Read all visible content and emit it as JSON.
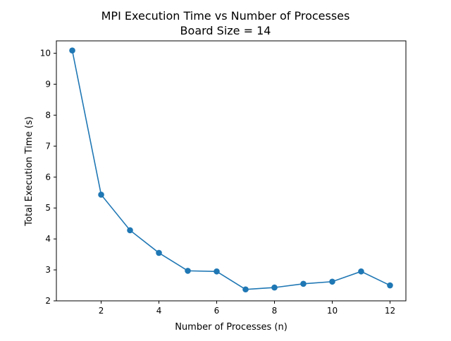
{
  "chart_data": {
    "type": "line",
    "title": "MPI Execution Time vs Number of Processes",
    "subtitle": "Board Size = 14",
    "xlabel": "Number of Processes (n)",
    "ylabel": "Total Execution Time (s)",
    "x": [
      1,
      2,
      3,
      4,
      5,
      6,
      7,
      8,
      9,
      10,
      11,
      12
    ],
    "series": [
      {
        "values": [
          10.09,
          5.43,
          4.28,
          3.55,
          2.97,
          2.95,
          2.37,
          2.43,
          2.55,
          2.62,
          2.95,
          2.5
        ],
        "color": "#1f77b4",
        "marker": "circle"
      }
    ],
    "xlim": [
      0.45,
      12.55
    ],
    "ylim": [
      2.0,
      10.4
    ],
    "xticks": [
      2,
      4,
      6,
      8,
      10,
      12
    ],
    "yticks": [
      2,
      3,
      4,
      5,
      6,
      7,
      8,
      9,
      10
    ],
    "grid": false,
    "legend": "none"
  }
}
